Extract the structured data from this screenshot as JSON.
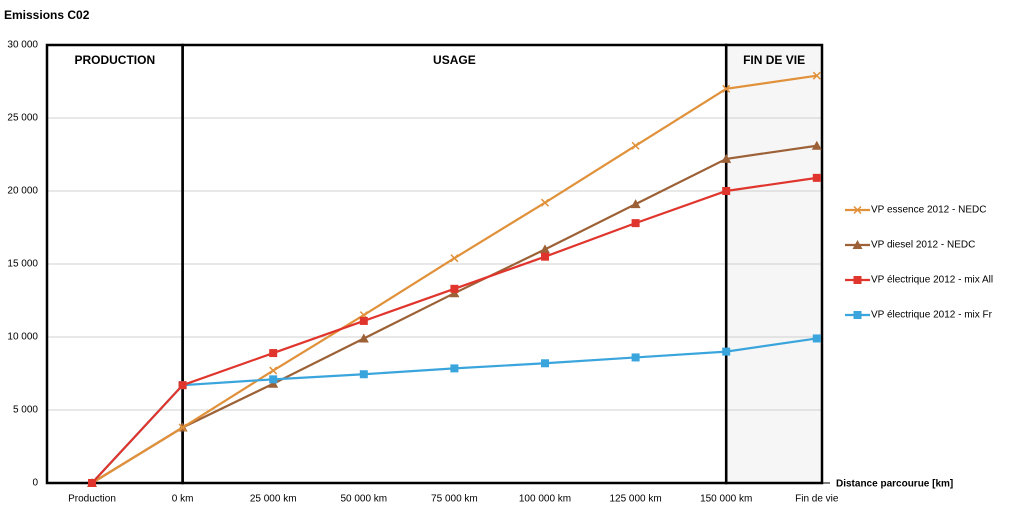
{
  "chart_data": {
    "type": "line",
    "title": "Emissions C02",
    "x_label": "Distance parcourue [km]",
    "sections": [
      "PRODUCTION",
      "USAGE",
      "FIN DE VIE"
    ],
    "categories": [
      "Production",
      "0 km",
      "25 000 km",
      "50 000 km",
      "75 000 km",
      "100 000 km",
      "125 000 km",
      "150 000 km",
      "Fin de vie"
    ],
    "ylim": [
      0,
      30000
    ],
    "yticks": [
      {
        "value": 0,
        "label": "0"
      },
      {
        "value": 5000,
        "label": "5 000"
      },
      {
        "value": 10000,
        "label": "10 000"
      },
      {
        "value": 15000,
        "label": "15 000"
      },
      {
        "value": 20000,
        "label": "20 000"
      },
      {
        "value": 25000,
        "label": "25 000"
      },
      {
        "value": 30000,
        "label": "30 000"
      }
    ],
    "grid": true,
    "series": [
      {
        "name": "VP essence 2012 - NEDC",
        "color": "#e0913a",
        "marker": "x",
        "values": [
          0,
          3800,
          7700,
          11500,
          15400,
          19200,
          23100,
          27000,
          27900
        ]
      },
      {
        "name": "VP diesel 2012 - NEDC",
        "color": "#9c6136",
        "marker": "triangle",
        "values": [
          0,
          3800,
          6800,
          9900,
          13000,
          16000,
          19100,
          22200,
          23100
        ]
      },
      {
        "name": "VP électrique 2012 - mix All",
        "color": "#e0352d",
        "marker": "square",
        "values": [
          0,
          6700,
          8900,
          11100,
          13300,
          15500,
          17800,
          20000,
          20900
        ]
      },
      {
        "name": "VP électrique 2012 - mix Fr",
        "color": "#3aa5dc",
        "marker": "square",
        "values": [
          0,
          6700,
          7100,
          7450,
          7850,
          8200,
          8600,
          9000,
          9900
        ]
      }
    ]
  }
}
